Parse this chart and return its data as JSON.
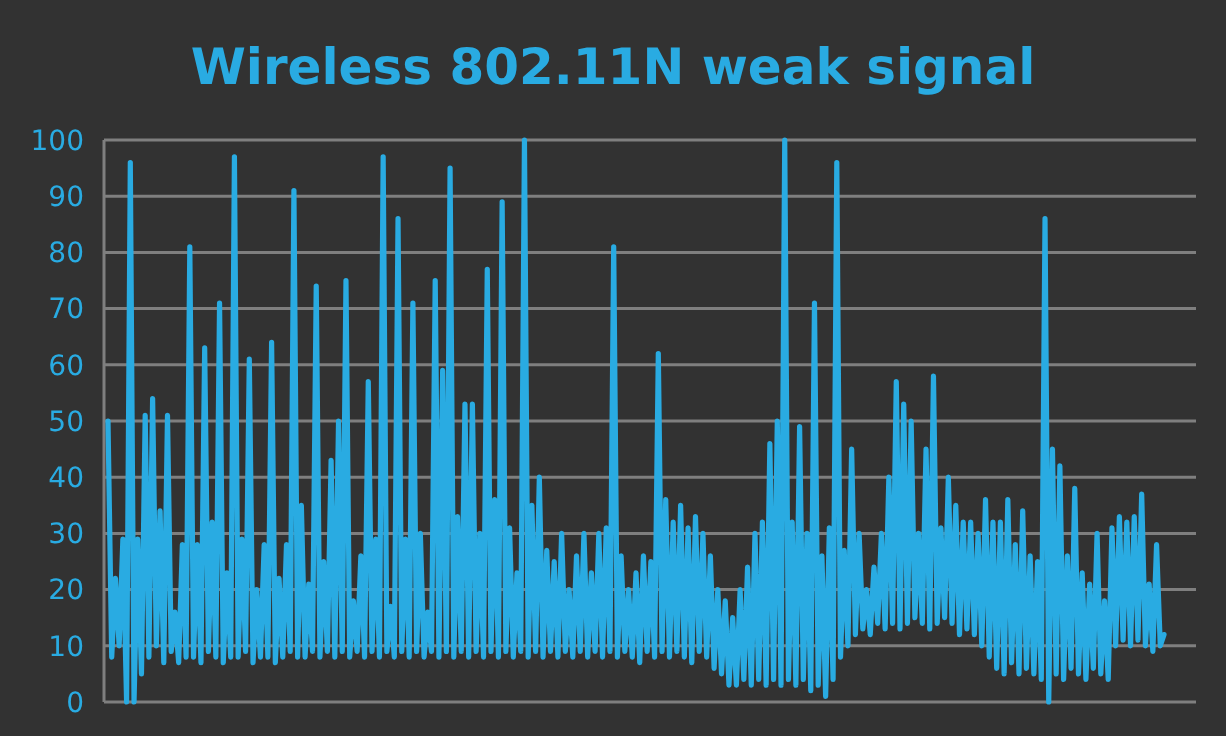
{
  "chart_data": {
    "type": "line",
    "title": "Wireless 802.11N weak signal",
    "color": "#29abe2",
    "ylim": [
      0,
      100
    ],
    "yticks": [
      0,
      10,
      20,
      30,
      40,
      50,
      60,
      70,
      80,
      90,
      100
    ],
    "grid": "y",
    "line_style": "solid",
    "categories": [
      null,
      null,
      null,
      null,
      null,
      null,
      null,
      null,
      null,
      null,
      null,
      null,
      null,
      null,
      null,
      null,
      null,
      null,
      null,
      null,
      null,
      null,
      null,
      null,
      null,
      null,
      null,
      null,
      null,
      null,
      null,
      null,
      null,
      null,
      null,
      null,
      null,
      null,
      null,
      null,
      null,
      null,
      null,
      null,
      null,
      null,
      null,
      null,
      null,
      null,
      null,
      null,
      null,
      null,
      null,
      null,
      null,
      null,
      null,
      null,
      null,
      null,
      null,
      null,
      null,
      null,
      null,
      null,
      null,
      null,
      null,
      null,
      null,
      null,
      null,
      null,
      null,
      null,
      null,
      null,
      null,
      null,
      null,
      null,
      null,
      null,
      null,
      null,
      null,
      null,
      null,
      null,
      null,
      null,
      null,
      null,
      null,
      null,
      null,
      null,
      null,
      null,
      null,
      null,
      null,
      null,
      null,
      null,
      null,
      null,
      null,
      null,
      null,
      null,
      null,
      null,
      null,
      null,
      null,
      null,
      null,
      null,
      null,
      null,
      null,
      null,
      null,
      null,
      null,
      null,
      null,
      null,
      null,
      null,
      null,
      null,
      null,
      null,
      null,
      null,
      null,
      null,
      null,
      null,
      null,
      null,
      null,
      null,
      null,
      null,
      null,
      null,
      null,
      null,
      null,
      null,
      null,
      null,
      null,
      null,
      null,
      null,
      null,
      null,
      null,
      null,
      null,
      null,
      null,
      null,
      null,
      null,
      null,
      null,
      null,
      null,
      null,
      null,
      null,
      null,
      null,
      null,
      null,
      null,
      null,
      null,
      null,
      null,
      null,
      null,
      null,
      null,
      null,
      null,
      null,
      null,
      null,
      null,
      null,
      null,
      null,
      null,
      null,
      null,
      null,
      null,
      null,
      null,
      null,
      null,
      null,
      null,
      null,
      null,
      null,
      null,
      null,
      null,
      null,
      null,
      null,
      null,
      null,
      null,
      null,
      null,
      null,
      null,
      null,
      null,
      null,
      null,
      null,
      null,
      null,
      null,
      null,
      null,
      null,
      null,
      null,
      null,
      null,
      null,
      null,
      null,
      null,
      null,
      null,
      null,
      null,
      null,
      null,
      null,
      null,
      null,
      null,
      null,
      null,
      null,
      null,
      null,
      null,
      null,
      null,
      null,
      null,
      null,
      null,
      null,
      null,
      null,
      null,
      null,
      null,
      null,
      null,
      null,
      null,
      null,
      null,
      null,
      null,
      null,
      null
    ],
    "values": [
      50,
      8,
      22,
      10,
      29,
      0,
      96,
      0,
      29,
      5,
      51,
      8,
      54,
      10,
      34,
      7,
      51,
      9,
      16,
      7,
      28,
      8,
      81,
      8,
      28,
      7,
      63,
      9,
      32,
      8,
      71,
      7,
      23,
      8,
      97,
      8,
      29,
      9,
      61,
      7,
      20,
      8,
      28,
      8,
      64,
      7,
      22,
      8,
      28,
      9,
      91,
      8,
      35,
      8,
      21,
      9,
      74,
      8,
      25,
      9,
      43,
      8,
      50,
      9,
      75,
      8,
      18,
      9,
      26,
      8,
      57,
      9,
      29,
      8,
      97,
      9,
      17,
      8,
      86,
      9,
      29,
      8,
      71,
      9,
      30,
      8,
      16,
      9,
      75,
      8,
      59,
      9,
      95,
      8,
      33,
      9,
      53,
      8,
      53,
      9,
      30,
      8,
      77,
      9,
      36,
      8,
      89,
      9,
      31,
      8,
      23,
      9,
      100,
      8,
      35,
      9,
      40,
      8,
      27,
      9,
      25,
      8,
      30,
      9,
      20,
      8,
      26,
      9,
      30,
      8,
      23,
      9,
      30,
      8,
      31,
      9,
      81,
      8,
      26,
      9,
      20,
      8,
      23,
      7,
      26,
      9,
      25,
      8,
      62,
      9,
      36,
      8,
      32,
      9,
      35,
      8,
      31,
      7,
      33,
      9,
      30,
      8,
      26,
      6,
      20,
      5,
      18,
      3,
      15,
      3,
      20,
      4,
      24,
      3,
      30,
      4,
      32,
      3,
      46,
      4,
      50,
      3,
      100,
      4,
      32,
      3,
      49,
      4,
      30,
      2,
      71,
      3,
      26,
      1,
      31,
      4,
      96,
      8,
      27,
      10,
      45,
      12,
      30,
      13,
      20,
      12,
      24,
      14,
      30,
      13,
      40,
      14,
      57,
      13,
      53,
      14,
      50,
      15,
      30,
      14,
      45,
      13,
      58,
      14,
      31,
      15,
      40,
      14,
      35,
      12,
      32,
      13,
      32,
      12,
      30,
      10,
      36,
      8,
      32,
      6,
      32,
      5,
      36,
      7,
      28,
      5,
      34,
      6,
      26,
      5,
      25,
      4,
      86,
      0,
      45,
      5,
      42,
      4,
      26,
      6,
      38,
      5,
      23,
      4,
      21,
      6,
      30,
      5,
      18,
      4,
      31,
      10,
      33,
      11,
      32,
      10,
      33,
      11,
      37,
      10,
      21,
      9,
      28,
      10,
      12
    ]
  }
}
